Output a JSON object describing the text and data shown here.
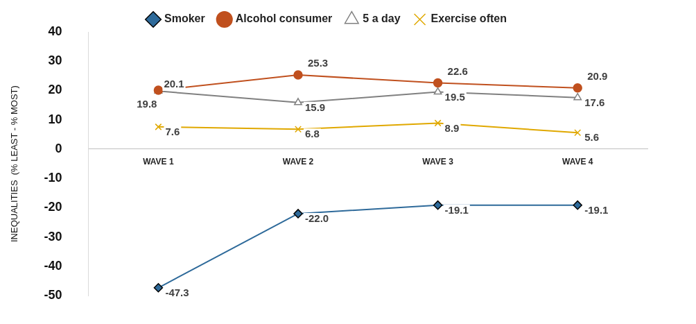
{
  "chart_data": {
    "type": "line",
    "ylabel": "INEQUALITIES  (% LEAST - % MOST)",
    "categories": [
      "WAVE 1",
      "WAVE 2",
      "WAVE 3",
      "WAVE 4"
    ],
    "series": [
      {
        "name": "Smoker",
        "color": "#2e6a9a",
        "marker": "diamond",
        "values": [
          -47.3,
          -22.0,
          -19.1,
          -19.1
        ],
        "value_labels": [
          "-47.3",
          "-22.0",
          "-19.1",
          "-19.1"
        ]
      },
      {
        "name": "Alcohol consumer",
        "color": "#c0501e",
        "marker": "circle",
        "values": [
          20.1,
          25.3,
          22.6,
          20.9
        ],
        "value_labels": [
          "20.1",
          "25.3",
          "22.6",
          "20.9"
        ]
      },
      {
        "name": "5 a day",
        "color": "#808080",
        "marker": "triangle",
        "values": [
          19.8,
          15.9,
          19.5,
          17.6
        ],
        "value_labels": [
          "19.8",
          "15.9",
          "19.5",
          "17.6"
        ]
      },
      {
        "name": "Exercise often",
        "color": "#e0a800",
        "marker": "cross",
        "values": [
          7.6,
          6.8,
          8.9,
          5.6
        ],
        "value_labels": [
          "7.6",
          "6.8",
          "8.9",
          "5.6"
        ]
      }
    ],
    "ylim": [
      -50,
      40
    ],
    "yticks": [
      -50,
      -40,
      -30,
      -20,
      -10,
      0,
      10,
      20,
      30,
      40
    ],
    "grid": false,
    "legend": "top"
  }
}
